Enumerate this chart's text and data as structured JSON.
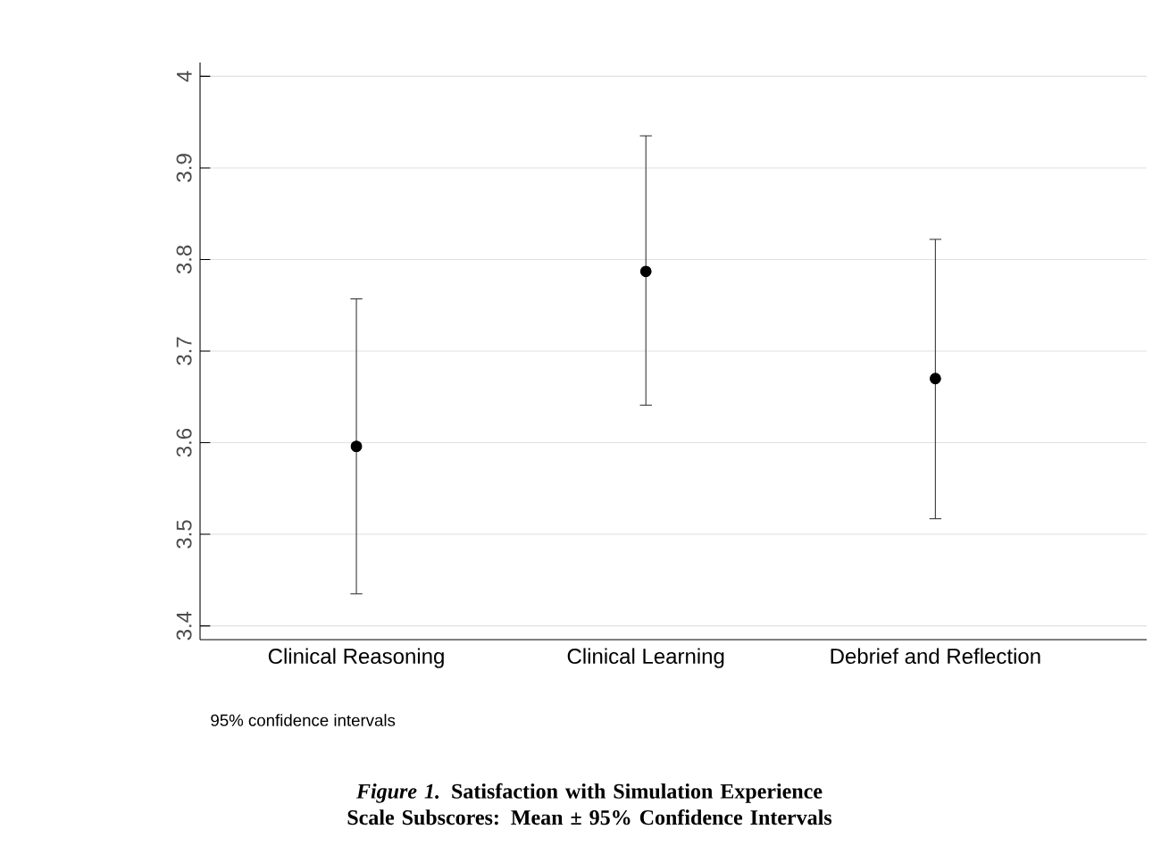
{
  "chart_data": {
    "type": "scatter",
    "title": "*Figure 1.* Satisfaction with Simulation Experience Scale Subscores: Mean ± 95% Confidence Intervals",
    "categories": [
      "Clinical Reasoning",
      "Clinical Learning",
      "Debrief and Reflection"
    ],
    "values": [
      3.596,
      3.787,
      3.67
    ],
    "errors": [
      [
        3.435,
        3.757
      ],
      [
        3.641,
        3.935
      ],
      [
        3.517,
        3.822
      ]
    ],
    "color": "#000000",
    "marker": "circle",
    "ylim": [
      3.385,
      4.015
    ],
    "yticks": [
      3.4,
      3.5,
      3.6,
      3.7,
      3.8,
      3.9,
      4
    ],
    "grid": "y",
    "annotations": [
      "95% confidence intervals"
    ]
  }
}
